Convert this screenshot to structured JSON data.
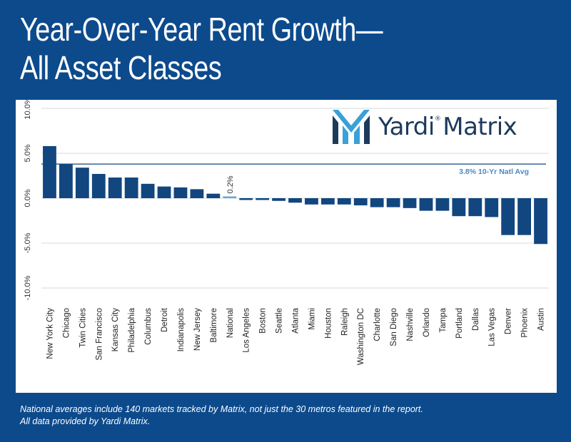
{
  "header": {
    "title_line1": "Year-Over-Year Rent Growth—",
    "title_line2": "All Asset Classes"
  },
  "logo": {
    "icon": "yardi-matrix-logo-mark",
    "text": "Yardi",
    "text2": "Matrix",
    "registered": "®"
  },
  "footnote": {
    "line1": "National averages include 140 markets tracked by Matrix, not just the 30 metros featured in the report.",
    "line2": "All data provided by Yardi Matrix."
  },
  "colors": {
    "background": "#0c4a8c",
    "bar": "#12467f",
    "highlight_bar": "#6aa6dc",
    "avg_line": "#12467f",
    "avg_label": "#4d88c4"
  },
  "chart_data": {
    "type": "bar",
    "title": "",
    "xlabel": "",
    "ylabel": "",
    "ylim": [
      -10,
      10
    ],
    "yticks": [
      -10,
      -5,
      0,
      5,
      10
    ],
    "ytick_labels": [
      "-10.0%",
      "-5.0%",
      "0.0%",
      "5.0%",
      "10.0%"
    ],
    "grid": true,
    "categories": [
      "New York City",
      "Chicago",
      "Twin Cities",
      "San Francisco",
      "Kansas City",
      "Philadelphia",
      "Columbus",
      "Detroit",
      "Indianapolis",
      "New Jersey",
      "Baltimore",
      "National",
      "Los Angeles",
      "Boston",
      "Seattle",
      "Atlanta",
      "Miami",
      "Houston",
      "Raleigh",
      "Washington DC",
      "Charlotte",
      "San Diego",
      "Nashville",
      "Orlando",
      "Tampa",
      "Portland",
      "Dallas",
      "Las Vegas",
      "Denver",
      "Phoenix",
      "Austin"
    ],
    "values": [
      5.8,
      3.8,
      3.4,
      2.7,
      2.3,
      2.3,
      1.6,
      1.3,
      1.2,
      1.0,
      0.5,
      0.2,
      -0.2,
      -0.2,
      -0.3,
      -0.5,
      -0.7,
      -0.7,
      -0.7,
      -0.8,
      -1.0,
      -1.0,
      -1.1,
      -1.4,
      -1.4,
      -2.0,
      -2.0,
      -2.1,
      -4.1,
      -4.1,
      -5.1
    ],
    "highlight_category": "National",
    "highlight_label": "0.2%",
    "reference_line": {
      "value": 3.8,
      "label": "3.8% 10-Yr Natl Avg"
    }
  }
}
